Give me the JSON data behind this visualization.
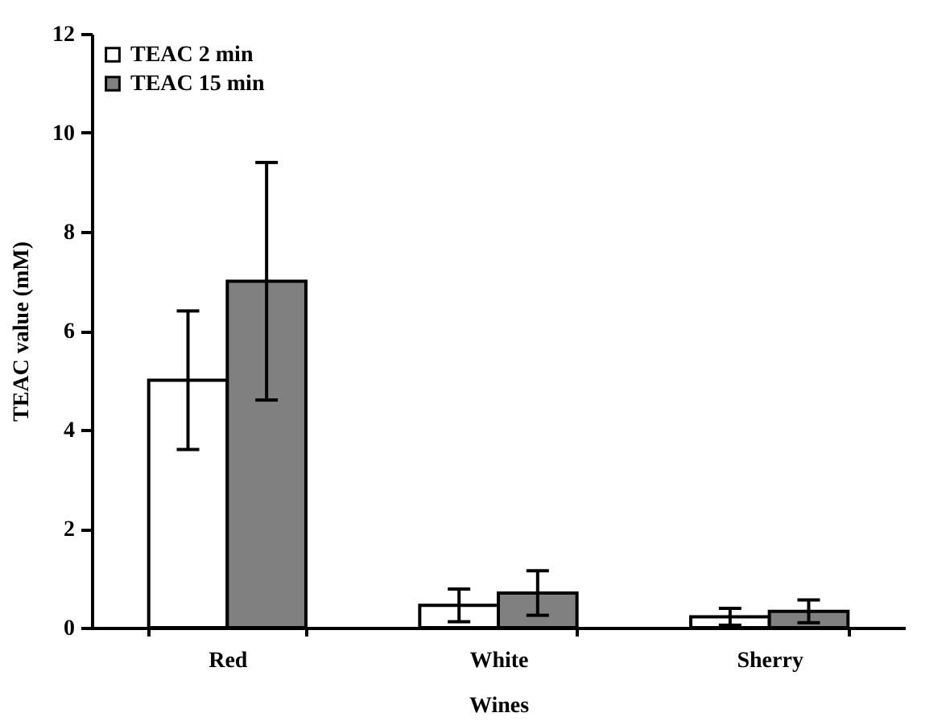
{
  "chart_data": {
    "type": "bar",
    "xlabel": "Wines",
    "ylabel": "TEAC value (mM)",
    "categories": [
      "Red",
      "White",
      "Sherry"
    ],
    "series": [
      {
        "name": "TEAC 2 min",
        "color": "#ffffff",
        "values": [
          5.0,
          0.45,
          0.22
        ],
        "errors": [
          1.4,
          0.33,
          0.17
        ]
      },
      {
        "name": "TEAC 15 min",
        "color": "#808080",
        "values": [
          7.0,
          0.7,
          0.33
        ],
        "errors": [
          2.4,
          0.45,
          0.23
        ]
      }
    ],
    "ylim": [
      0,
      12
    ],
    "yticks": [
      0,
      2,
      4,
      6,
      8,
      10,
      12
    ],
    "grid": false,
    "legend": "top left"
  }
}
